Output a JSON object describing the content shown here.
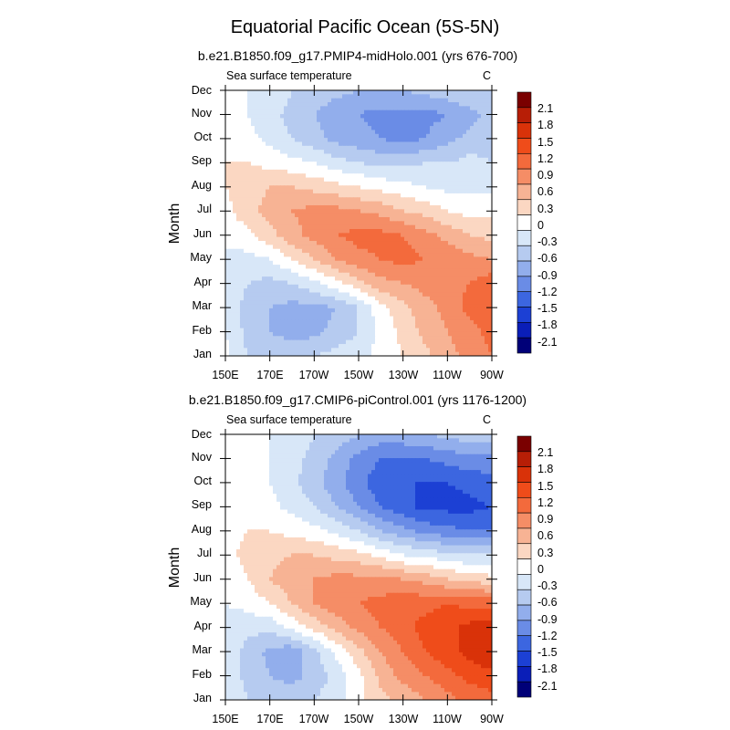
{
  "figure": {
    "title": "Equatorial Pacific Ocean (5S-5N)"
  },
  "chart_data": [
    {
      "type": "heatmap",
      "title": "b.e21.B1850.f09_g17.PMIP4-midHolo.001 (yrs 676-700)",
      "left_label": "Sea surface temperature",
      "right_label": "C",
      "xlabel": "",
      "ylabel": "Month",
      "x_ticks": [
        "150E",
        "170E",
        "170W",
        "150W",
        "130W",
        "110W",
        "90W"
      ],
      "y_ticks": [
        "Jan",
        "Feb",
        "Mar",
        "Apr",
        "May",
        "Jun",
        "Jul",
        "Aug",
        "Sep",
        "Oct",
        "Nov",
        "Dec"
      ],
      "xlim": [
        "150E",
        "90W"
      ],
      "levels": [
        -2.1,
        -1.8,
        -1.5,
        -1.2,
        -0.9,
        -0.6,
        -0.3,
        0,
        0.3,
        0.6,
        0.9,
        1.2,
        1.5,
        1.8,
        2.1
      ],
      "x": [
        "150E",
        "160E",
        "170E",
        "180",
        "170W",
        "160W",
        "150W",
        "140W",
        "130W",
        "120W",
        "110W",
        "100W",
        "90W"
      ],
      "y": [
        "Jan",
        "Feb",
        "Mar",
        "Apr",
        "May",
        "Jun",
        "Jul",
        "Aug",
        "Sep",
        "Oct",
        "Nov",
        "Dec"
      ],
      "z": [
        [
          0.1,
          -0.3,
          -0.4,
          -0.4,
          -0.3,
          -0.2,
          -0.1,
          0.1,
          0.3,
          0.5,
          0.8,
          1.0,
          1.2
        ],
        [
          0.0,
          -0.4,
          -0.6,
          -0.7,
          -0.7,
          -0.5,
          -0.3,
          0.1,
          0.4,
          0.7,
          0.9,
          1.1,
          1.3
        ],
        [
          -0.1,
          -0.4,
          -0.6,
          -0.7,
          -0.7,
          -0.6,
          -0.3,
          0.2,
          0.5,
          0.8,
          1.0,
          1.3,
          1.4
        ],
        [
          -0.1,
          -0.3,
          -0.4,
          -0.3,
          -0.1,
          0.2,
          0.5,
          0.8,
          0.9,
          1.0,
          1.1,
          1.2,
          1.4
        ],
        [
          -0.1,
          -0.1,
          0.0,
          0.3,
          0.6,
          0.9,
          1.1,
          1.2,
          1.3,
          1.2,
          1.1,
          1.0,
          0.9
        ],
        [
          0.1,
          0.2,
          0.5,
          0.8,
          1.0,
          1.2,
          1.3,
          1.3,
          1.2,
          1.0,
          0.8,
          0.6,
          0.5
        ],
        [
          0.2,
          0.5,
          0.7,
          0.9,
          1.0,
          1.0,
          0.9,
          0.8,
          0.6,
          0.5,
          0.3,
          0.2,
          0.2
        ],
        [
          0.3,
          0.5,
          0.6,
          0.6,
          0.5,
          0.4,
          0.3,
          0.2,
          0.1,
          0.0,
          -0.1,
          -0.1,
          -0.1
        ],
        [
          0.3,
          0.3,
          0.2,
          0.1,
          0.0,
          -0.2,
          -0.3,
          -0.4,
          -0.4,
          -0.3,
          -0.3,
          -0.2,
          -0.3
        ],
        [
          0.3,
          0.1,
          -0.1,
          -0.3,
          -0.5,
          -0.7,
          -0.8,
          -0.9,
          -1.0,
          -0.9,
          -0.7,
          -0.5,
          -0.4
        ],
        [
          0.3,
          0.0,
          -0.2,
          -0.4,
          -0.6,
          -0.8,
          -0.9,
          -1.0,
          -1.0,
          -1.0,
          -0.9,
          -0.7,
          -0.5
        ],
        [
          0.2,
          0.0,
          -0.1,
          -0.3,
          -0.4,
          -0.5,
          -0.6,
          -0.6,
          -0.6,
          -0.5,
          -0.4,
          -0.3,
          -0.3
        ]
      ]
    },
    {
      "type": "heatmap",
      "title": "b.e21.B1850.f09_g17.CMIP6-piControl.001 (yrs 1176-1200)",
      "left_label": "Sea surface temperature",
      "right_label": "C",
      "xlabel": "",
      "ylabel": "Month",
      "x_ticks": [
        "150E",
        "170E",
        "170W",
        "150W",
        "130W",
        "110W",
        "90W"
      ],
      "y_ticks": [
        "Jan",
        "Feb",
        "Mar",
        "Apr",
        "May",
        "Jun",
        "Jul",
        "Aug",
        "Sep",
        "Oct",
        "Nov",
        "Dec"
      ],
      "xlim": [
        "150E",
        "90W"
      ],
      "levels": [
        -2.1,
        -1.8,
        -1.5,
        -1.2,
        -0.9,
        -0.6,
        -0.3,
        0,
        0.3,
        0.6,
        0.9,
        1.2,
        1.5,
        1.8,
        2.1
      ],
      "x": [
        "150E",
        "160E",
        "170E",
        "180",
        "170W",
        "160W",
        "150W",
        "140W",
        "130W",
        "120W",
        "110W",
        "100W",
        "90W"
      ],
      "y": [
        "Jan",
        "Feb",
        "Mar",
        "Apr",
        "May",
        "Jun",
        "Jul",
        "Aug",
        "Sep",
        "Oct",
        "Nov",
        "Dec"
      ],
      "z": [
        [
          0.0,
          -0.3,
          -0.4,
          -0.4,
          -0.3,
          -0.1,
          0.2,
          0.5,
          0.7,
          0.9,
          1.1,
          1.3,
          1.4
        ],
        [
          -0.1,
          -0.4,
          -0.6,
          -0.7,
          -0.5,
          -0.2,
          0.2,
          0.7,
          1.0,
          1.2,
          1.4,
          1.6,
          1.7
        ],
        [
          -0.1,
          -0.4,
          -0.7,
          -0.8,
          -0.4,
          0.1,
          0.5,
          0.9,
          1.2,
          1.5,
          1.7,
          1.9,
          2.1
        ],
        [
          -0.1,
          -0.2,
          -0.2,
          0.1,
          0.4,
          0.7,
          1.0,
          1.2,
          1.4,
          1.6,
          1.7,
          1.9,
          2.0
        ],
        [
          0.0,
          0.1,
          0.3,
          0.6,
          0.9,
          1.1,
          1.2,
          1.3,
          1.4,
          1.4,
          1.5,
          1.4,
          1.4
        ],
        [
          0.1,
          0.3,
          0.6,
          0.8,
          0.9,
          1.0,
          1.0,
          1.0,
          0.9,
          0.8,
          0.6,
          0.5,
          0.4
        ],
        [
          0.2,
          0.4,
          0.5,
          0.6,
          0.6,
          0.5,
          0.4,
          0.2,
          0.0,
          -0.1,
          -0.2,
          -0.3,
          -0.3
        ],
        [
          0.2,
          0.3,
          0.3,
          0.2,
          0.1,
          -0.1,
          -0.3,
          -0.6,
          -0.8,
          -1.0,
          -1.1,
          -1.2,
          -1.2
        ],
        [
          0.1,
          0.2,
          0.1,
          -0.1,
          -0.3,
          -0.6,
          -0.9,
          -1.2,
          -1.4,
          -1.6,
          -1.6,
          -1.6,
          -1.5
        ],
        [
          0.3,
          0.2,
          0.0,
          -0.2,
          -0.5,
          -0.8,
          -1.1,
          -1.4,
          -1.5,
          -1.5,
          -1.5,
          -1.4,
          -1.3
        ],
        [
          0.3,
          0.2,
          0.0,
          -0.2,
          -0.4,
          -0.7,
          -1.0,
          -1.2,
          -1.2,
          -1.2,
          -1.1,
          -1.0,
          -1.0
        ],
        [
          0.3,
          0.2,
          0.0,
          -0.1,
          -0.3,
          -0.4,
          -0.6,
          -0.7,
          -0.7,
          -0.6,
          -0.5,
          -0.4,
          -0.4
        ]
      ]
    }
  ],
  "colorbar": {
    "labels": [
      "2.1",
      "1.8",
      "1.5",
      "1.2",
      "0.9",
      "0.6",
      "0.3",
      "0",
      "-0.3",
      "-0.6",
      "-0.9",
      "-1.2",
      "-1.5",
      "-1.8",
      "-2.1"
    ],
    "colors": [
      "#7a0000",
      "#b71e06",
      "#d93209",
      "#ef4c1a",
      "#f36a3c",
      "#f58d66",
      "#f7b394",
      "#fbd7c2",
      "#ffffff",
      "#d8e7f8",
      "#b6cbf0",
      "#92aeec",
      "#6a8ce6",
      "#3c66e0",
      "#1c40d4",
      "#0a1eb8",
      "#000078"
    ]
  }
}
